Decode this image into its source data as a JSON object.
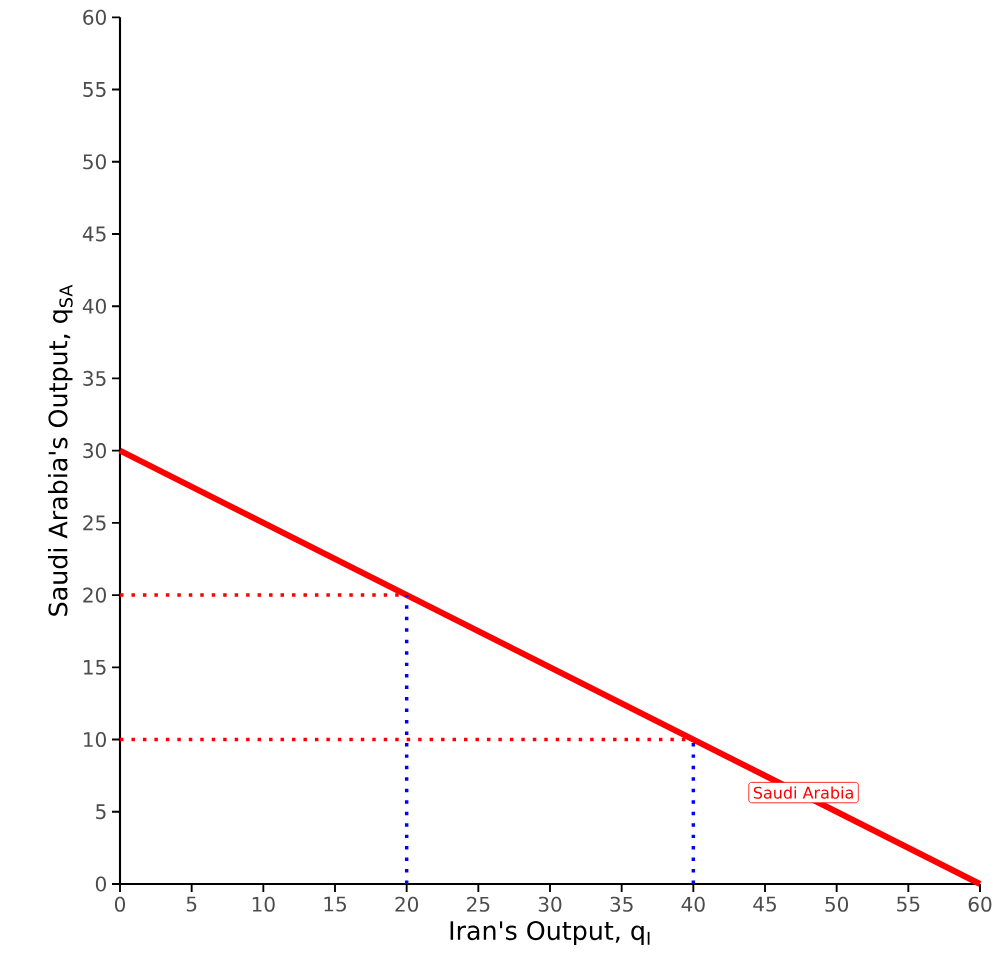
{
  "chart_data": {
    "type": "line",
    "xlabel": "Iran's Output, q$_{I}$",
    "ylabel": "Saudi Arabia's Output, q$_{SA}$",
    "xlim": [
      0,
      60
    ],
    "ylim": [
      0,
      60
    ],
    "xticks": [
      0,
      5,
      10,
      15,
      20,
      25,
      30,
      35,
      40,
      45,
      50,
      55,
      60
    ],
    "yticks": [
      0,
      5,
      10,
      15,
      20,
      25,
      30,
      35,
      40,
      45,
      50,
      55,
      60
    ],
    "grid": false,
    "legend": "bottom right",
    "series": [
      {
        "name": "Saudi Arabia",
        "color": "#ff0000",
        "x": [
          0,
          60
        ],
        "values": [
          30,
          0
        ],
        "line_style": "solid"
      },
      {
        "color": "#ff0000",
        "x": [
          0,
          20
        ],
        "values": [
          20,
          20
        ],
        "line_style": "dotted"
      },
      {
        "color": "#ff0000",
        "x": [
          0,
          40
        ],
        "values": [
          10,
          10
        ],
        "line_style": "dotted"
      },
      {
        "color": "#0000ff",
        "x": [
          20,
          20
        ],
        "values": [
          0,
          20
        ],
        "line_style": "dotted"
      },
      {
        "color": "#0000ff",
        "x": [
          40,
          40
        ],
        "values": [
          0,
          10
        ],
        "line_style": "dotted"
      }
    ]
  }
}
